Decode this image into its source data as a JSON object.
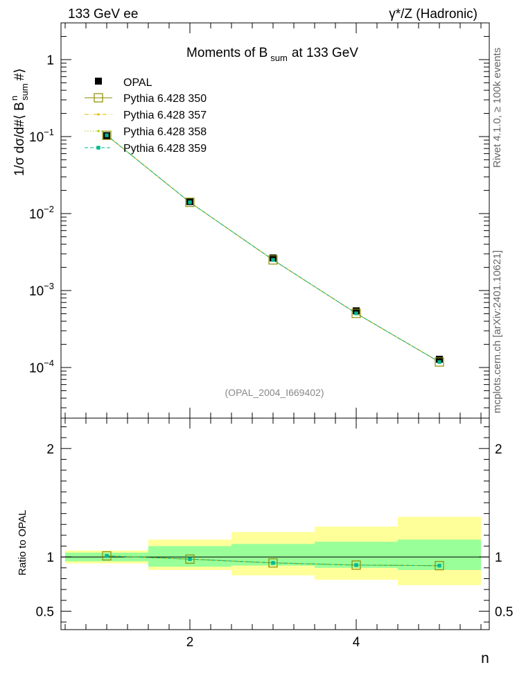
{
  "header": {
    "left": "133 GeV ee",
    "right": "γ*/Z (Hadronic)"
  },
  "side": {
    "rivet": "Rivet 4.1.0, ≥ 100k events",
    "mcplots": "mcplots.cern.ch [arXiv:2401.10621]"
  },
  "chart_data": {
    "type": "scatter",
    "title": "Moments of B sum at 133 GeV",
    "title_parts": {
      "main": "Moments of B",
      "sub": "sum",
      "tail": "at 133 GeV"
    },
    "analysis_id": "(OPAL_2004_I669402)",
    "xlabel": "n",
    "ylabel_main": "1/σ  dσ/d#⟨ B^n_sum #⟩",
    "ylabel_parts": {
      "a": "1/σ  dσ/d#⟨ B",
      "sup": "n",
      "sub": "sum",
      "b": "#⟩"
    },
    "ylabel_ratio": "Ratio to OPAL",
    "x": [
      1,
      2,
      3,
      4,
      5
    ],
    "xlim": [
      0.45,
      5.6
    ],
    "xticks": [
      2,
      4
    ],
    "yscale": "log",
    "ylim": [
      2.2e-05,
      3.0
    ],
    "yticks_major": [
      {
        "value": 1,
        "base": "1",
        "exp": ""
      },
      {
        "value": 0.1,
        "base": "10",
        "exp": "−1"
      },
      {
        "value": 0.01,
        "base": "10",
        "exp": "−2"
      },
      {
        "value": 0.001,
        "base": "10",
        "exp": "−3"
      },
      {
        "value": 0.0001,
        "base": "10",
        "exp": "−4"
      }
    ],
    "ratio_ylim": [
      0.33,
      2.28
    ],
    "ratio_yticks": [
      {
        "value": 0.5,
        "label": "0.5"
      },
      {
        "value": 1,
        "label": "1"
      },
      {
        "value": 2,
        "label": "2"
      }
    ],
    "data": {
      "name": "OPAL",
      "values": [
        0.103,
        0.0143,
        0.00265,
        0.000545,
        0.000128
      ],
      "band_green": [
        [
          0.96,
          1.04
        ],
        [
          0.91,
          1.1
        ],
        [
          0.92,
          1.12
        ],
        [
          0.9,
          1.14
        ],
        [
          0.88,
          1.16
        ]
      ],
      "band_yellow": [
        [
          0.94,
          1.06
        ],
        [
          0.88,
          1.16
        ],
        [
          0.83,
          1.23
        ],
        [
          0.79,
          1.28
        ],
        [
          0.74,
          1.37
        ]
      ]
    },
    "series": [
      {
        "name": "Pythia 6.428 350",
        "color": "#8b8b00",
        "marker": "open-square",
        "line": "solid",
        "values": [
          0.104,
          0.014,
          0.0025,
          0.000505,
          0.000118
        ],
        "ratio": [
          1.01,
          0.98,
          0.945,
          0.925,
          0.92
        ]
      },
      {
        "name": "Pythia 6.428 357",
        "color": "#e0b800",
        "marker": "small-dot",
        "line": "dashdot",
        "values": [
          0.104,
          0.014,
          0.0025,
          0.000505,
          0.000118
        ],
        "ratio": [
          1.01,
          0.98,
          0.945,
          0.925,
          0.92
        ]
      },
      {
        "name": "Pythia 6.428 358",
        "color": "#a8c800",
        "marker": "small-dot",
        "line": "dotted",
        "values": [
          0.104,
          0.014,
          0.0025,
          0.000505,
          0.000118
        ],
        "ratio": [
          1.01,
          0.98,
          0.945,
          0.925,
          0.92
        ]
      },
      {
        "name": "Pythia 6.428 359",
        "color": "#00b890",
        "marker": "filled-square",
        "line": "dashed",
        "values": [
          0.104,
          0.014,
          0.0025,
          0.000505,
          0.000118
        ],
        "ratio": [
          1.01,
          0.98,
          0.945,
          0.925,
          0.92
        ]
      }
    ],
    "colors": {
      "data": "#000000",
      "band_green": "#99ff99",
      "band_yellow": "#ffff99",
      "analysis_id": "#888888",
      "side_text": "#666666"
    }
  }
}
